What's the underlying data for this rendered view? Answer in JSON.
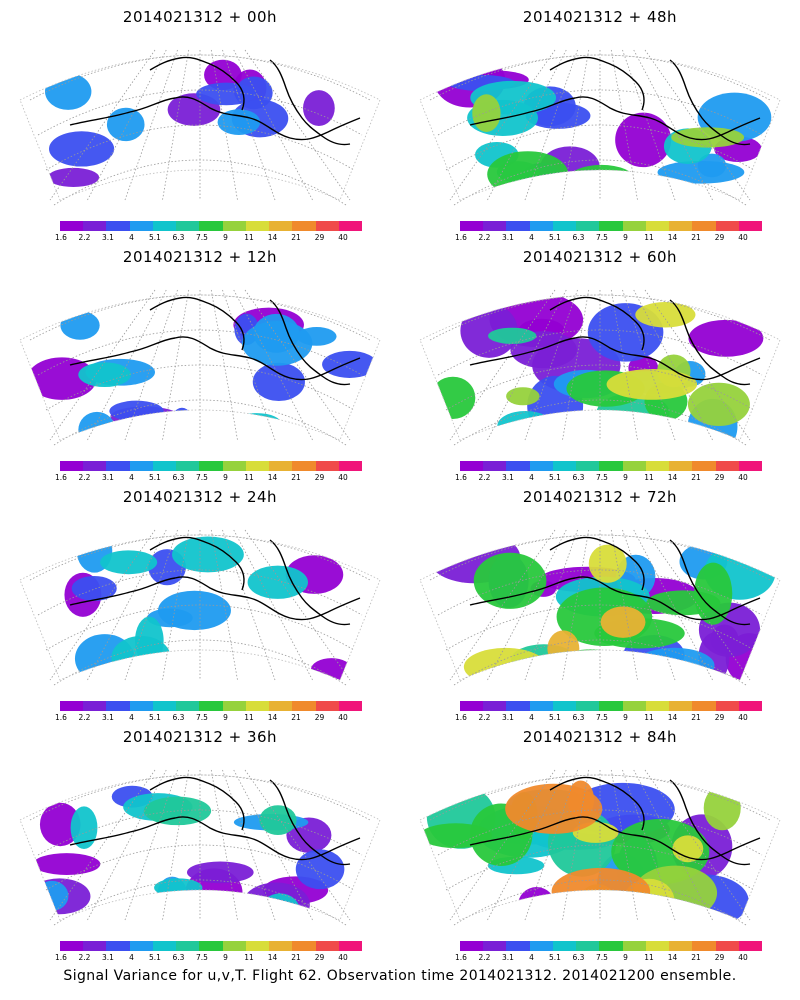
{
  "panels": [
    {
      "title": "2014021312 + 00h",
      "intensity": 0.15
    },
    {
      "title": "2014021312 + 48h",
      "intensity": 0.55
    },
    {
      "title": "2014021312 + 12h",
      "intensity": 0.25
    },
    {
      "title": "2014021312 + 60h",
      "intensity": 0.65
    },
    {
      "title": "2014021312 + 24h",
      "intensity": 0.35
    },
    {
      "title": "2014021312 + 72h",
      "intensity": 0.75
    },
    {
      "title": "2014021312 + 36h",
      "intensity": 0.45
    },
    {
      "title": "2014021312 + 84h",
      "intensity": 0.85
    }
  ],
  "colorbar": {
    "labels": [
      "1.6",
      "2.2",
      "3.1",
      "4",
      "5.1",
      "6.3",
      "7.5",
      "9",
      "11",
      "14",
      "21",
      "29",
      "40"
    ],
    "colors": [
      "#9400d3",
      "#7a1fd6",
      "#3b4ff0",
      "#1f9bf0",
      "#11c4cc",
      "#20c89a",
      "#28c83c",
      "#96d23c",
      "#d8dd3a",
      "#e8b234",
      "#f08a2c",
      "#f04a4a",
      "#f0147a"
    ]
  },
  "footer": "Signal Variance for u,v,T. Flight 62. Observation time 2014021312. 2014021200 ensemble."
}
